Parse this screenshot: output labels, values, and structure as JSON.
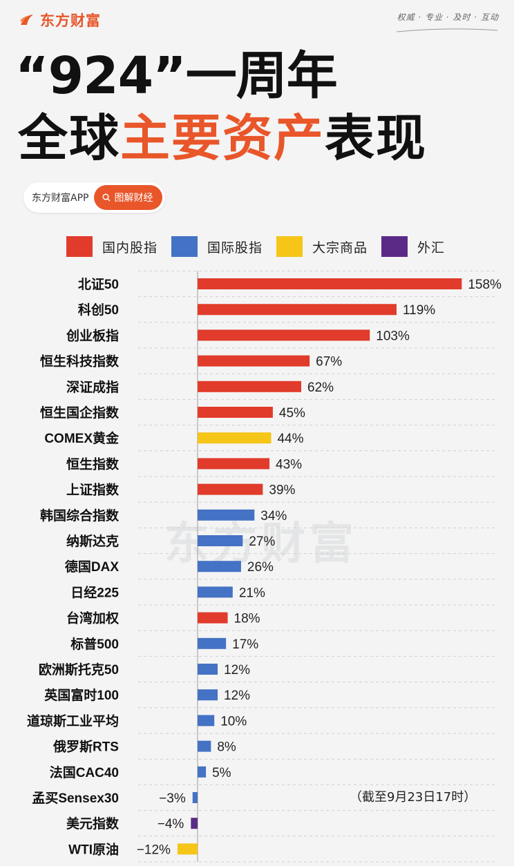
{
  "header": {
    "brand_name": "东方财富",
    "slogan": "权威 · 专业 · 及时 · 互动",
    "colors": {
      "brand": "#e8562a"
    },
    "icon": "eastmoney-logo-icon"
  },
  "title": {
    "line1": "“924”一周年",
    "line2_dark_prefix": "全球",
    "line2_highlight": "主要资产",
    "line2_dark_suffix": "表现"
  },
  "search_pill": {
    "app_label": "东方财富APP",
    "button_label": "图解财经",
    "button_icon": "search-icon"
  },
  "legend": [
    {
      "label": "国内股指",
      "color": "#e03b2b"
    },
    {
      "label": "国际股指",
      "color": "#4472c4"
    },
    {
      "label": "大宗商品",
      "color": "#f5c518"
    },
    {
      "label": "外汇",
      "color": "#5b2a86"
    }
  ],
  "watermark": "东方财富",
  "note": "（截至9月23日17时）",
  "chart_data": {
    "type": "bar",
    "orientation": "horizontal",
    "title": "“924”一周年 全球主要资产表现",
    "unit": "%",
    "grid": "horizontal dashed",
    "legend_position": "top",
    "categories": [
      "北证50",
      "科创50",
      "创业板指",
      "恒生科技指数",
      "深证成指",
      "恒生国企指数",
      "COMEX黄金",
      "恒生指数",
      "上证指数",
      "韩国综合指数",
      "纳斯达克",
      "德国DAX",
      "日经225",
      "台湾加权",
      "标普500",
      "欧洲斯托克50",
      "英国富时100",
      "道琼斯工业平均",
      "俄罗斯RTS",
      "法国CAC40",
      "孟买Sensex30",
      "美元指数",
      "WTI原油"
    ],
    "values": [
      158,
      119,
      103,
      67,
      62,
      45,
      44,
      43,
      39,
      34,
      27,
      26,
      21,
      18,
      17,
      12,
      12,
      10,
      8,
      5,
      -3,
      -4,
      -12
    ],
    "value_labels": [
      "158%",
      "119%",
      "103%",
      "67%",
      "62%",
      "45%",
      "44%",
      "43%",
      "39%",
      "34%",
      "27%",
      "26%",
      "21%",
      "18%",
      "17%",
      "12%",
      "12%",
      "10%",
      "8%",
      "5%",
      "−3%",
      "−4%",
      "−12%"
    ],
    "groups": [
      "国内股指",
      "国内股指",
      "国内股指",
      "国内股指",
      "国内股指",
      "国内股指",
      "大宗商品",
      "国内股指",
      "国内股指",
      "国际股指",
      "国际股指",
      "国际股指",
      "国际股指",
      "国内股指",
      "国际股指",
      "国际股指",
      "国际股指",
      "国际股指",
      "国际股指",
      "国际股指",
      "国际股指",
      "外汇",
      "大宗商品"
    ]
  }
}
